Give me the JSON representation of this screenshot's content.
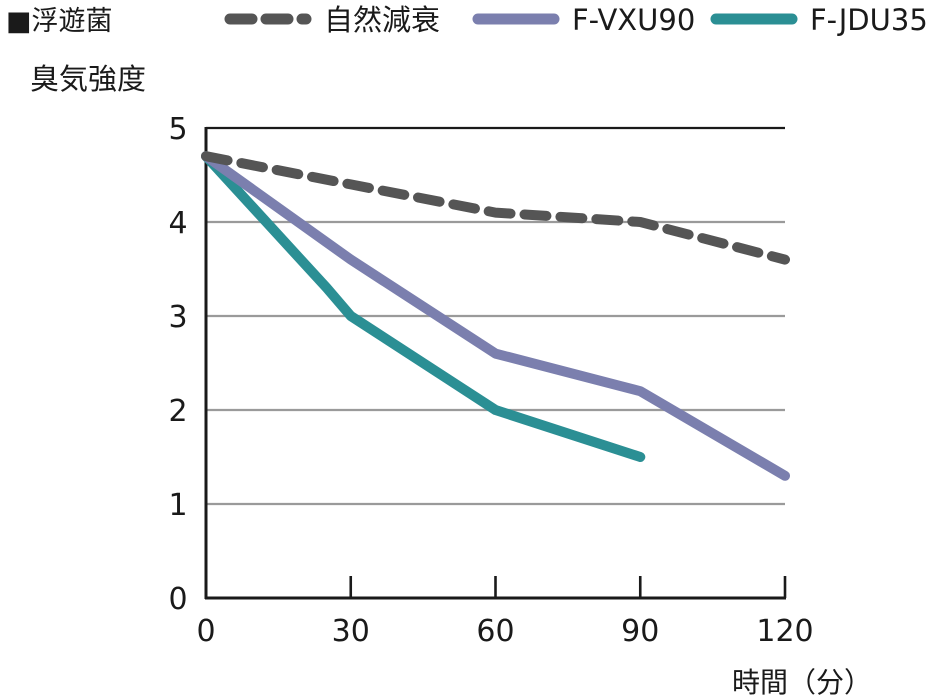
{
  "chart_data": {
    "type": "line",
    "title": "■浮遊菌",
    "ylabel": "臭気強度",
    "xlabel": "時間（分）",
    "x": [
      0,
      30,
      60,
      90,
      120
    ],
    "xlim": [
      0,
      120
    ],
    "ylim": [
      0,
      5
    ],
    "yticks": [
      "0",
      "1",
      "2",
      "3",
      "4",
      "5"
    ],
    "xticks": [
      "0",
      "30",
      "60",
      "90",
      "120"
    ],
    "grid": true,
    "legend_position": "top",
    "series": [
      {
        "name": "自然減衰",
        "color": "#555555",
        "dash": true,
        "points": [
          [
            0,
            4.7
          ],
          [
            30,
            4.4
          ],
          [
            60,
            4.1
          ],
          [
            90,
            4.0
          ],
          [
            120,
            3.6
          ]
        ]
      },
      {
        "name": "F-VXU90",
        "color": "#7b7fae",
        "dash": false,
        "points": [
          [
            0,
            4.7
          ],
          [
            30,
            3.6
          ],
          [
            60,
            2.6
          ],
          [
            90,
            2.2
          ],
          [
            120,
            1.3
          ]
        ]
      },
      {
        "name": "F-JDU35",
        "color": "#2b8f94",
        "dash": false,
        "points": [
          [
            0,
            4.7
          ],
          [
            25,
            3.3
          ],
          [
            30,
            3.0
          ],
          [
            60,
            2.0
          ],
          [
            90,
            1.5
          ]
        ]
      }
    ]
  }
}
